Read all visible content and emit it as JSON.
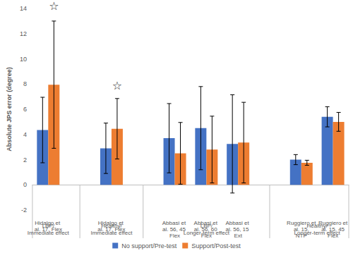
{
  "chart_data": {
    "type": "bar",
    "y_label": "Absolute JPS error (degree)",
    "categories": [
      "Hidalgo et al. 17, Flex",
      null,
      "Hidalgo et al. 17, Flex",
      null,
      "Abbasi et al. 56, 45 Flex",
      "Abbasi et al. 56, 60 Flex",
      "Abbasi et al. 56, 15 Ext",
      null,
      "Ruggiero et al. 15, NTP",
      "Ruggiero et al. 15, 45 Flex"
    ],
    "series": [
      {
        "name": "No support/Pre-test",
        "color": "#4472c4",
        "values": [
          4.35,
          null,
          2.9,
          null,
          3.7,
          4.5,
          3.25,
          null,
          2.0,
          5.4
        ],
        "errors": [
          2.6,
          null,
          2.0,
          null,
          2.75,
          3.3,
          3.9,
          null,
          0.4,
          0.8
        ]
      },
      {
        "name": "Support/Post-test",
        "color": "#ed7d31",
        "values": [
          7.95,
          null,
          4.45,
          null,
          2.5,
          2.8,
          3.35,
          null,
          1.75,
          5.0
        ],
        "errors": [
          5.05,
          null,
          2.4,
          null,
          2.45,
          2.65,
          3.2,
          null,
          0.2,
          0.75
        ]
      }
    ],
    "groups": [
      {
        "label": "LBP/\nImmediate effect",
        "start": 0,
        "end": 0
      },
      {
        "label": "Healthy/\nImmediate effect",
        "start": 2,
        "end": 2
      },
      {
        "label": "LBP/\nLonger-term effect",
        "start": 4,
        "end": 6
      },
      {
        "label": "Healthy/\nLonger-term effect",
        "start": 8,
        "end": 9
      }
    ],
    "annotations": [
      {
        "text": "☆",
        "category": 0,
        "series": 1,
        "y": 14.2
      },
      {
        "text": "☆",
        "category": 2,
        "series": 1,
        "y": 7.9
      }
    ],
    "ylim": [
      -2,
      14
    ],
    "yticks": [
      -2,
      0,
      2,
      4,
      6,
      8,
      10,
      12,
      14
    ],
    "grid": false,
    "legend": "bottom"
  }
}
